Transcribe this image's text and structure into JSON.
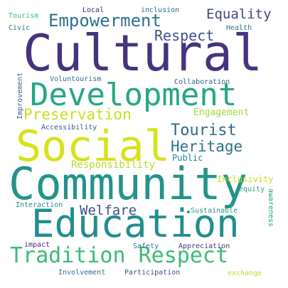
{
  "words": {
    "cultural": "Cultural",
    "development": "Development",
    "social": "Social",
    "community": "Community",
    "education": "Education",
    "tradition_respect": "Tradition Respect",
    "empowerment": "Empowerment",
    "equality": "Equality",
    "respect": "Respect",
    "preservation": "Preservation",
    "tourist": "Tourist",
    "heritage": "Heritage",
    "welfare": "Welfare",
    "responsibility": "Responsibility",
    "engagement": "Engagement",
    "inclusivity": "Inclusivity",
    "public": "Public",
    "tourism": "Tourism",
    "local": "Local",
    "inclusion": "inclusion",
    "civic": "Civic",
    "health": "Health",
    "voluntourism": "Voluntourism",
    "collaboration": "Collaboration",
    "accessibility": "Accessibility",
    "improvement": "Improvement",
    "equity": "equity",
    "interaction": "Interaction",
    "sustainable": "Sustainable",
    "awareness": "awareness",
    "impact": "impact",
    "safety": "Safety",
    "appreciation": "Appreciation",
    "involvement": "Involvement",
    "participation": "Participation",
    "exchange": "exchange"
  },
  "colors": {
    "background": "#ffffff",
    "palette": [
      "#46337e",
      "#25a783",
      "#d7e219",
      "#24938c",
      "#3bbb75",
      "#2c728e",
      "#404588",
      "#c7e020",
      "#31688e"
    ]
  }
}
